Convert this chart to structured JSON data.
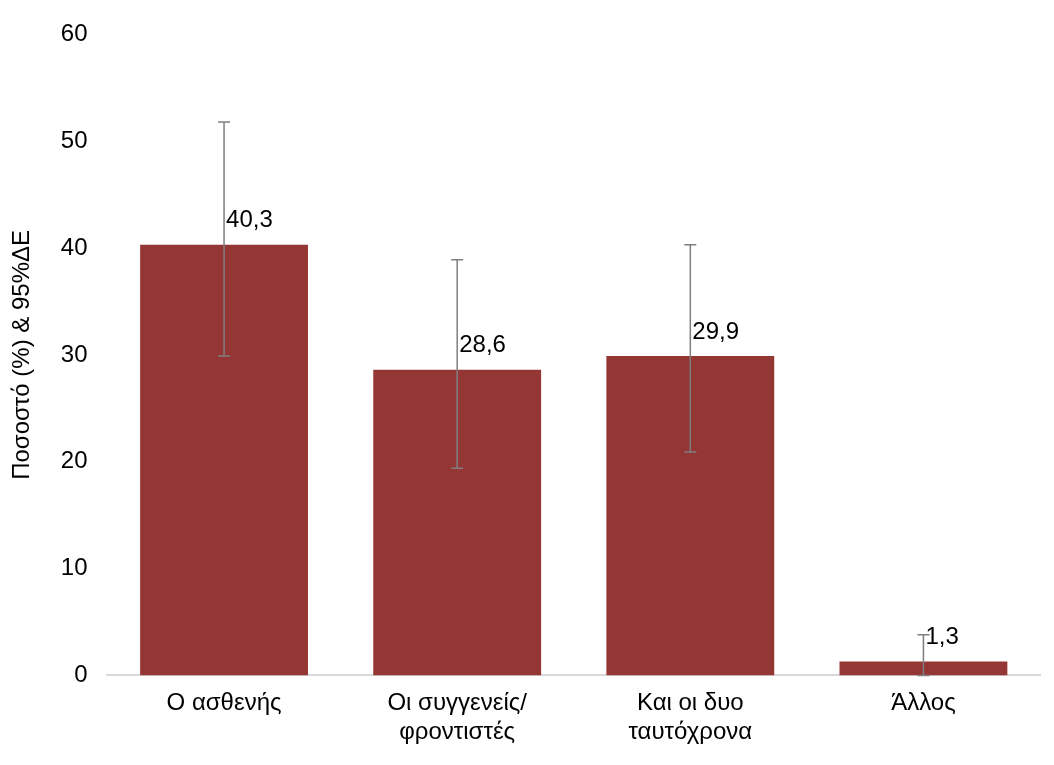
{
  "chart_data": {
    "type": "bar",
    "ylabel": "Ποσοστό (%) & 95%ΔΕ",
    "categories": [
      "Ο ασθενής",
      "Οι συγγενείς/ φροντιστές",
      "Και οι δυο ταυτόχρονα",
      "Άλλος"
    ],
    "values": [
      40.3,
      28.6,
      29.9,
      1.3
    ],
    "value_labels": [
      "40,3",
      "28,6",
      "29,9",
      "1,3"
    ],
    "errors": [
      [
        29.9,
        51.8
      ],
      [
        19.4,
        38.9
      ],
      [
        20.9,
        40.3
      ],
      [
        0,
        3.8
      ]
    ],
    "color": "#943634",
    "ylim": [
      0,
      60
    ],
    "yticks": [
      0,
      10,
      20,
      30,
      40,
      50,
      60
    ],
    "grid": false,
    "legend": false
  }
}
